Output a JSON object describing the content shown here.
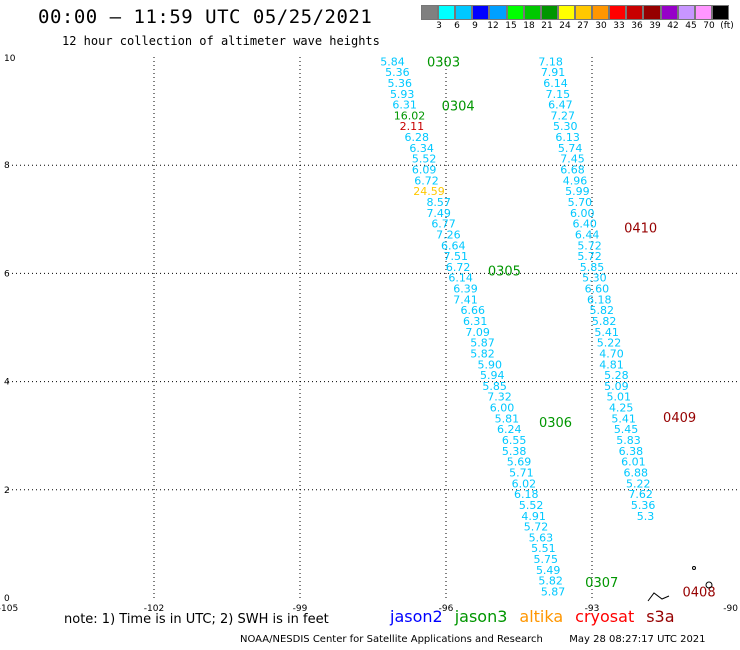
{
  "header": {
    "title": "00:00 – 11:59 UTC 05/25/2021",
    "subtitle": "12 hour collection of altimeter wave heights"
  },
  "color_scale": {
    "unit": "(ft)",
    "labels": [
      "3",
      "6",
      "9",
      "12",
      "15",
      "18",
      "21",
      "24",
      "27",
      "30",
      "33",
      "36",
      "39",
      "42",
      "45",
      "70"
    ],
    "colors": [
      "#808080",
      "#00ffff",
      "#00c8ff",
      "#0000ff",
      "#00a0ff",
      "#00ff00",
      "#00c800",
      "#009600",
      "#ffff00",
      "#ffc800",
      "#ff9600",
      "#ff0000",
      "#c80000",
      "#960000",
      "#9600c8",
      "#c896ff",
      "#ff96ff",
      "#000000"
    ]
  },
  "footer": {
    "note": "note: 1) Time is in UTC; 2) SWH is in feet",
    "credit": "NOAA/NESDIS Center for Satellite Applications and Research",
    "timestamp": "May 28 08:27:17 UTC 2021"
  },
  "legend": [
    {
      "name": "jason2",
      "color": "#0000ff"
    },
    {
      "name": "jason3",
      "color": "#009600"
    },
    {
      "name": "altika",
      "color": "#ff9600"
    },
    {
      "name": "cryosat",
      "color": "#ff0000"
    },
    {
      "name": "s3a",
      "color": "#960000"
    }
  ],
  "chart_data": {
    "type": "scatter",
    "xlim": [
      -105,
      -90
    ],
    "ylim": [
      0,
      10
    ],
    "x_ticks": [
      "-105",
      "-102",
      "-99",
      "-96",
      "-93",
      "-90"
    ],
    "y_ticks": [
      "0",
      "2",
      "4",
      "6",
      "8",
      "10"
    ],
    "grid": true,
    "tracks": [
      {
        "satellite": "jason3",
        "points": [
          {
            "lon": -97.1,
            "lat": 9.92,
            "v": "5.84",
            "c": "#00c8ff"
          },
          {
            "lon": -97.0,
            "lat": 9.72,
            "v": "5.36",
            "c": "#00c8ff"
          },
          {
            "lon": -96.95,
            "lat": 9.52,
            "v": "5.36",
            "c": "#00c8ff"
          },
          {
            "lon": -96.9,
            "lat": 9.32,
            "v": "5.93",
            "c": "#00c8ff"
          },
          {
            "lon": -96.85,
            "lat": 9.12,
            "v": "6.31",
            "c": "#00c8ff"
          },
          {
            "lon": -96.75,
            "lat": 8.92,
            "v": "16.02",
            "c": "#009600"
          },
          {
            "lon": -96.7,
            "lat": 8.72,
            "v": "2.11",
            "c": "#c80000"
          },
          {
            "lon": -96.6,
            "lat": 8.52,
            "v": "6.28",
            "c": "#00c8ff"
          },
          {
            "lon": -96.5,
            "lat": 8.32,
            "v": "6.34",
            "c": "#00c8ff"
          },
          {
            "lon": -96.45,
            "lat": 8.12,
            "v": "5.52",
            "c": "#00c8ff"
          },
          {
            "lon": -96.45,
            "lat": 7.92,
            "v": "6.09",
            "c": "#00c8ff"
          },
          {
            "lon": -96.4,
            "lat": 7.72,
            "v": "6.72",
            "c": "#00c8ff"
          },
          {
            "lon": -96.35,
            "lat": 7.52,
            "v": "24.59",
            "c": "#ffc800"
          },
          {
            "lon": -96.15,
            "lat": 7.32,
            "v": "8.57",
            "c": "#00c8ff"
          },
          {
            "lon": -96.15,
            "lat": 7.12,
            "v": "7.49",
            "c": "#00c8ff"
          },
          {
            "lon": -96.05,
            "lat": 6.92,
            "v": "6.77",
            "c": "#00c8ff"
          },
          {
            "lon": -95.95,
            "lat": 6.72,
            "v": "7.26",
            "c": "#00c8ff"
          },
          {
            "lon": -95.85,
            "lat": 6.52,
            "v": "6.64",
            "c": "#00c8ff"
          },
          {
            "lon": -95.8,
            "lat": 6.32,
            "v": "7.51",
            "c": "#00c8ff"
          },
          {
            "lon": -95.75,
            "lat": 6.12,
            "v": "6.72",
            "c": "#00c8ff"
          },
          {
            "lon": -95.7,
            "lat": 5.92,
            "v": "6.14",
            "c": "#00c8ff"
          },
          {
            "lon": -95.6,
            "lat": 5.72,
            "v": "6.39",
            "c": "#00c8ff"
          },
          {
            "lon": -95.6,
            "lat": 5.52,
            "v": "7.41",
            "c": "#00c8ff"
          },
          {
            "lon": -95.45,
            "lat": 5.32,
            "v": "6.66",
            "c": "#00c8ff"
          },
          {
            "lon": -95.4,
            "lat": 5.12,
            "v": "6.31",
            "c": "#00c8ff"
          },
          {
            "lon": -95.35,
            "lat": 4.92,
            "v": "7.09",
            "c": "#00c8ff"
          },
          {
            "lon": -95.25,
            "lat": 4.72,
            "v": "5.87",
            "c": "#00c8ff"
          },
          {
            "lon": -95.25,
            "lat": 4.52,
            "v": "5.82",
            "c": "#00c8ff"
          },
          {
            "lon": -95.1,
            "lat": 4.32,
            "v": "5.90",
            "c": "#00c8ff"
          },
          {
            "lon": -95.05,
            "lat": 4.12,
            "v": "5.94",
            "c": "#00c8ff"
          },
          {
            "lon": -95.0,
            "lat": 3.92,
            "v": "5.85",
            "c": "#00c8ff"
          },
          {
            "lon": -94.9,
            "lat": 3.72,
            "v": "7.32",
            "c": "#00c8ff"
          },
          {
            "lon": -94.85,
            "lat": 3.52,
            "v": "6.00",
            "c": "#00c8ff"
          },
          {
            "lon": -94.75,
            "lat": 3.32,
            "v": "5.81",
            "c": "#00c8ff"
          },
          {
            "lon": -94.7,
            "lat": 3.12,
            "v": "6.24",
            "c": "#00c8ff"
          },
          {
            "lon": -94.6,
            "lat": 2.92,
            "v": "6.55",
            "c": "#00c8ff"
          },
          {
            "lon": -94.6,
            "lat": 2.72,
            "v": "5.38",
            "c": "#00c8ff"
          },
          {
            "lon": -94.5,
            "lat": 2.52,
            "v": "5.69",
            "c": "#00c8ff"
          },
          {
            "lon": -94.45,
            "lat": 2.32,
            "v": "5.71",
            "c": "#00c8ff"
          },
          {
            "lon": -94.4,
            "lat": 2.12,
            "v": "6.02",
            "c": "#00c8ff"
          },
          {
            "lon": -94.35,
            "lat": 1.92,
            "v": "6.18",
            "c": "#00c8ff"
          },
          {
            "lon": -94.25,
            "lat": 1.72,
            "v": "5.52",
            "c": "#00c8ff"
          },
          {
            "lon": -94.2,
            "lat": 1.52,
            "v": "4.91",
            "c": "#00c8ff"
          },
          {
            "lon": -94.15,
            "lat": 1.32,
            "v": "5.72",
            "c": "#00c8ff"
          },
          {
            "lon": -94.05,
            "lat": 1.12,
            "v": "5.63",
            "c": "#00c8ff"
          },
          {
            "lon": -94.0,
            "lat": 0.92,
            "v": "5.51",
            "c": "#00c8ff"
          },
          {
            "lon": -93.95,
            "lat": 0.72,
            "v": "5.75",
            "c": "#00c8ff"
          },
          {
            "lon": -93.9,
            "lat": 0.52,
            "v": "5.49",
            "c": "#00c8ff"
          },
          {
            "lon": -93.85,
            "lat": 0.32,
            "v": "5.82",
            "c": "#00c8ff"
          },
          {
            "lon": -93.8,
            "lat": 0.12,
            "v": "5.87",
            "c": "#00c8ff"
          }
        ],
        "time_labels": [
          {
            "text": "0303",
            "lon": -96.05,
            "lat": 9.92
          },
          {
            "text": "0304",
            "lon": -95.75,
            "lat": 9.1
          },
          {
            "text": "0305",
            "lon": -94.8,
            "lat": 6.05
          },
          {
            "text": "0306",
            "lon": -93.75,
            "lat": 3.25
          },
          {
            "text": "0307",
            "lon": -92.8,
            "lat": 0.3
          }
        ]
      },
      {
        "satellite": "s3a",
        "points": [
          {
            "lon": -93.85,
            "lat": 9.92,
            "v": "7.18",
            "c": "#00c8ff"
          },
          {
            "lon": -93.8,
            "lat": 9.72,
            "v": "7.91",
            "c": "#00c8ff"
          },
          {
            "lon": -93.75,
            "lat": 9.52,
            "v": "6.14",
            "c": "#00c8ff"
          },
          {
            "lon": -93.7,
            "lat": 9.32,
            "v": "7.15",
            "c": "#00c8ff"
          },
          {
            "lon": -93.65,
            "lat": 9.12,
            "v": "6.47",
            "c": "#00c8ff"
          },
          {
            "lon": -93.6,
            "lat": 8.92,
            "v": "7.27",
            "c": "#00c8ff"
          },
          {
            "lon": -93.55,
            "lat": 8.72,
            "v": "5.30",
            "c": "#00c8ff"
          },
          {
            "lon": -93.5,
            "lat": 8.52,
            "v": "6.13",
            "c": "#00c8ff"
          },
          {
            "lon": -93.45,
            "lat": 8.32,
            "v": "5.74",
            "c": "#00c8ff"
          },
          {
            "lon": -93.4,
            "lat": 8.12,
            "v": "7.45",
            "c": "#00c8ff"
          },
          {
            "lon": -93.4,
            "lat": 7.92,
            "v": "6.68",
            "c": "#00c8ff"
          },
          {
            "lon": -93.35,
            "lat": 7.72,
            "v": "4.96",
            "c": "#00c8ff"
          },
          {
            "lon": -93.3,
            "lat": 7.52,
            "v": "5.99",
            "c": "#00c8ff"
          },
          {
            "lon": -93.25,
            "lat": 7.32,
            "v": "5.70",
            "c": "#00c8ff"
          },
          {
            "lon": -93.2,
            "lat": 7.12,
            "v": "6.00",
            "c": "#00c8ff"
          },
          {
            "lon": -93.15,
            "lat": 6.92,
            "v": "6.40",
            "c": "#00c8ff"
          },
          {
            "lon": -93.1,
            "lat": 6.72,
            "v": "6.44",
            "c": "#00c8ff"
          },
          {
            "lon": -93.05,
            "lat": 6.52,
            "v": "5.72",
            "c": "#00c8ff"
          },
          {
            "lon": -93.05,
            "lat": 6.32,
            "v": "5.72",
            "c": "#00c8ff"
          },
          {
            "lon": -93.0,
            "lat": 6.12,
            "v": "5.85",
            "c": "#00c8ff"
          },
          {
            "lon": -92.95,
            "lat": 5.92,
            "v": "5.30",
            "c": "#00c8ff"
          },
          {
            "lon": -92.9,
            "lat": 5.72,
            "v": "6.60",
            "c": "#00c8ff"
          },
          {
            "lon": -92.85,
            "lat": 5.52,
            "v": "6.18",
            "c": "#00c8ff"
          },
          {
            "lon": -92.8,
            "lat": 5.32,
            "v": "5.82",
            "c": "#00c8ff"
          },
          {
            "lon": -92.75,
            "lat": 5.12,
            "v": "5.82",
            "c": "#00c8ff"
          },
          {
            "lon": -92.7,
            "lat": 4.92,
            "v": "5.41",
            "c": "#00c8ff"
          },
          {
            "lon": -92.65,
            "lat": 4.72,
            "v": "5.22",
            "c": "#00c8ff"
          },
          {
            "lon": -92.6,
            "lat": 4.52,
            "v": "4.70",
            "c": "#00c8ff"
          },
          {
            "lon": -92.6,
            "lat": 4.32,
            "v": "4.81",
            "c": "#00c8ff"
          },
          {
            "lon": -92.5,
            "lat": 4.12,
            "v": "5.28",
            "c": "#00c8ff"
          },
          {
            "lon": -92.5,
            "lat": 3.92,
            "v": "5.09",
            "c": "#00c8ff"
          },
          {
            "lon": -92.45,
            "lat": 3.72,
            "v": "5.01",
            "c": "#00c8ff"
          },
          {
            "lon": -92.4,
            "lat": 3.52,
            "v": "4.25",
            "c": "#00c8ff"
          },
          {
            "lon": -92.35,
            "lat": 3.32,
            "v": "5.41",
            "c": "#00c8ff"
          },
          {
            "lon": -92.3,
            "lat": 3.12,
            "v": "5.45",
            "c": "#00c8ff"
          },
          {
            "lon": -92.25,
            "lat": 2.92,
            "v": "5.83",
            "c": "#00c8ff"
          },
          {
            "lon": -92.2,
            "lat": 2.72,
            "v": "6.38",
            "c": "#00c8ff"
          },
          {
            "lon": -92.15,
            "lat": 2.52,
            "v": "6.01",
            "c": "#00c8ff"
          },
          {
            "lon": -92.1,
            "lat": 2.32,
            "v": "6.88",
            "c": "#00c8ff"
          },
          {
            "lon": -92.05,
            "lat": 2.12,
            "v": "5.22",
            "c": "#00c8ff"
          },
          {
            "lon": -92.0,
            "lat": 1.92,
            "v": "7.62",
            "c": "#00c8ff"
          },
          {
            "lon": -91.95,
            "lat": 1.72,
            "v": "5.36",
            "c": "#00c8ff"
          },
          {
            "lon": -91.9,
            "lat": 1.52,
            "v": "5.3",
            "c": "#00c8ff"
          }
        ],
        "time_labels": [
          {
            "text": "0410",
            "lon": -92.0,
            "lat": 6.85
          },
          {
            "text": "0409",
            "lon": -91.2,
            "lat": 3.35
          },
          {
            "text": "0408",
            "lon": -90.8,
            "lat": 0.12
          }
        ]
      }
    ]
  }
}
